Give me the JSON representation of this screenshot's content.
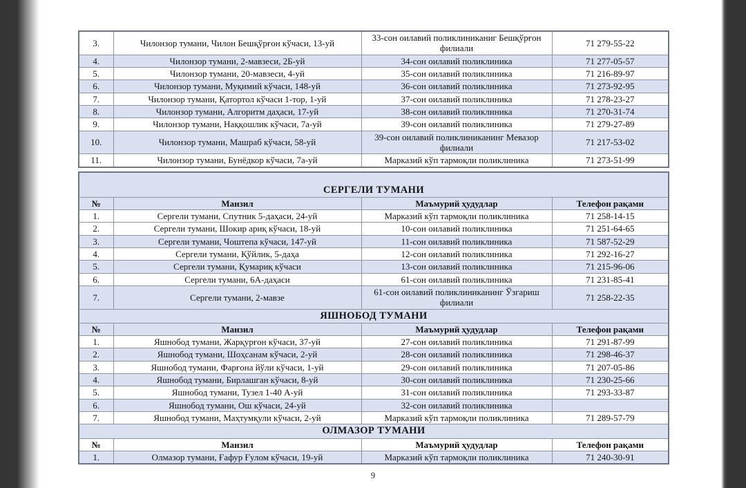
{
  "page": {
    "number": "9"
  },
  "columns": {
    "num": "№",
    "address": "Манзил",
    "area": "Маъмурий ҳудудлар",
    "phone": "Телефон рақами"
  },
  "colors": {
    "row_shade": "#dbe0f1",
    "grid_border": "#8d94a6",
    "side_band": "#363636",
    "text": "#141414"
  },
  "sections": [
    {
      "title": "",
      "header": false,
      "rows": [
        {
          "num": "3.",
          "address": "Чилонзор тумани, Чилон Бешқўрғон кўчаси, 13-уй",
          "area": "33-сон оилавий поликлиниканиг Бешқўрғон филиали",
          "phone": "71 279-55-22",
          "shaded": false
        },
        {
          "num": "4.",
          "address": "Чилонзор тумани, 2-мавзеси, 2Б-уй",
          "area": "34-сон оилавий поликлиника",
          "phone": "71 277-05-57",
          "shaded": true
        },
        {
          "num": "5.",
          "address": "Чилонзор тумани, 20-мавзеси, 4-уй",
          "area": "35-сон оилавий поликлиника",
          "phone": "71 216-89-97",
          "shaded": false
        },
        {
          "num": "6.",
          "address": "Чилонзор тумани, Муқимий кўчаси, 148-уй",
          "area": "36-сон оилавий поликлиника",
          "phone": "71 273-92-95",
          "shaded": true
        },
        {
          "num": "7.",
          "address": "Чилонзор тумани, Қатортол кўчаси 1-тор, 1-уй",
          "area": "37-сон оилавий поликлиника",
          "phone": "71 278-23-27",
          "shaded": false
        },
        {
          "num": "8.",
          "address": "Чилонзор тумани, Алгоритм даҳаси, 17-уй",
          "area": "38-сон оилавий поликлиника",
          "phone": "71 270-31-74",
          "shaded": true
        },
        {
          "num": "9.",
          "address": "Чилонзор тумани, Наққошлик кўчаси, 7а-уй",
          "area": "39-сон оилавий поликлиника",
          "phone": "71 279-27-89",
          "shaded": false
        },
        {
          "num": "10.",
          "address": "Чилонзор тумани, Машраб кўчаси, 58-уй",
          "area": "39-сон оилавий поликлиниканинг Мевазор филиали",
          "phone": "71 217-53-02",
          "shaded": true
        },
        {
          "num": "11.",
          "address": "Чилонзор тумани, Бунёдкор кўчаси, 7а-уй",
          "area": "Марказий кўп тармоқли поликлиника",
          "phone": "71 273-51-99",
          "shaded": false
        }
      ]
    },
    {
      "title": "СЕРГЕЛИ ТУМАНИ",
      "gap_before": true,
      "banner_spaced": true,
      "header": true,
      "header_shaded": true,
      "rows": [
        {
          "num": "1.",
          "address": "Сергели тумани, Спутник 5-даҳаси, 24-уй",
          "area": "Марказий кўп тармоқли поликлиника",
          "phone": "71 258-14-15",
          "shaded": false
        },
        {
          "num": "2.",
          "address": "Сергели тумани, Шокир ариқ кўчаси, 18-уй",
          "area": "10-сон оилавий поликлиника",
          "phone": "71 251-64-65",
          "shaded": false
        },
        {
          "num": "3.",
          "address": "Сергели тумани, Чоштепа кўчаси, 147-уй",
          "area": "11-сон оилавий поликлиника",
          "phone": "71 587-52-29",
          "shaded": true
        },
        {
          "num": "4.",
          "address": "Сергели тумани, Қўйлик, 5-даҳа",
          "area": "12-сон оилавий поликлиника",
          "phone": "71 292-16-27",
          "shaded": false
        },
        {
          "num": "5.",
          "address": "Сергели тумани, Қумариқ кўчаси",
          "area": "13-сон оилавий поликлиника",
          "phone": "71 215-96-06",
          "shaded": true
        },
        {
          "num": "6.",
          "address": "Сергели тумани, 6А-даҳаси",
          "area": "61-сон оилавий поликлиника",
          "phone": "71 231-85-41",
          "shaded": false
        },
        {
          "num": "7.",
          "address": "Сергели тумани, 2-мавзе",
          "area": "61-сон оилавий поликлиниканинг Ўзгариш филиали",
          "phone": "71 258-22-35",
          "shaded": true
        }
      ]
    },
    {
      "title": "ЯШНОБОД ТУМАНИ",
      "header": true,
      "header_shaded": true,
      "rows": [
        {
          "num": "1.",
          "address": "Яшнобод тумани, Жарқурғон кўчаси, 37-уй",
          "area": "27-сон оилавий поликлиника",
          "phone": "71 291-87-99",
          "shaded": false
        },
        {
          "num": "2.",
          "address": "Яшнобод тумани, Шоҳсанам кўчаси, 2-уй",
          "area": "28-сон оилавий поликлиника",
          "phone": "71 298-46-37",
          "shaded": true
        },
        {
          "num": "3.",
          "address": "Яшнобод тумани, Фарғона йўли кўчаси, 1-уй",
          "area": "29-сон оилавий поликлиника",
          "phone": "71 207-05-86",
          "shaded": false
        },
        {
          "num": "4.",
          "address": "Яшнобод тумани, Бирлашган кўчаси, 8-уй",
          "area": "30-сон оилавий поликлиника",
          "phone": "71 230-25-66",
          "shaded": true
        },
        {
          "num": "5.",
          "address": "Яшнобод тумани, Тузел 1-40 А-уй",
          "area": "31-сон оилавий поликлиника",
          "phone": "71 293-33-87",
          "shaded": false
        },
        {
          "num": "6.",
          "address": "Яшнобод тумани, Ош кўчаси, 24-уй",
          "area": "32-сон оилавий поликлиника",
          "phone": "",
          "shaded": true
        },
        {
          "num": "7.",
          "address": "Яшнобод тумани, Маҳтумқули кўчаси, 2-уй",
          "area": "Марказий кўп тармоқли поликлиника",
          "phone": "71 289-57-79",
          "shaded": false
        }
      ]
    },
    {
      "title": "ОЛМАЗОР ТУМАНИ",
      "header": true,
      "header_shaded": false,
      "rows": [
        {
          "num": "1.",
          "address": "Олмазор тумани, Ғафур Ғулом кўчаси, 19-уй",
          "area": "Марказий кўп тармоқли поликлиника",
          "phone": "71 240-30-91",
          "shaded": true
        }
      ]
    }
  ]
}
